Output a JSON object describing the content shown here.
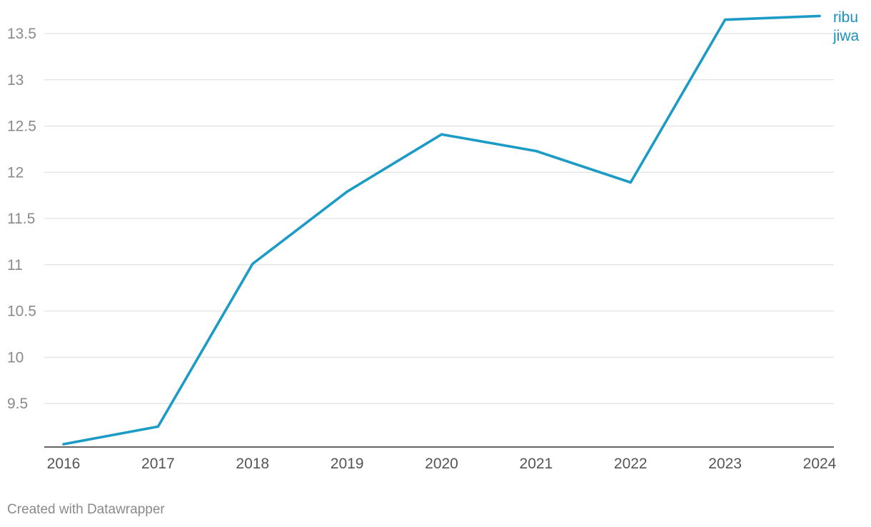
{
  "chart_data": {
    "type": "line",
    "x": [
      "2016",
      "2017",
      "2018",
      "2019",
      "2020",
      "2021",
      "2022",
      "2023",
      "2024"
    ],
    "series": [
      {
        "name": "ribu jiwa",
        "values": [
          9.06,
          9.25,
          11.01,
          11.79,
          12.41,
          12.23,
          11.89,
          13.65,
          13.69
        ],
        "color": "#1d9bc7"
      }
    ],
    "series_label_lines": [
      "ribu",
      "jiwa"
    ],
    "y_ticks": [
      "9.5",
      "10",
      "10.5",
      "11",
      "11.5",
      "12",
      "12.5",
      "13",
      "13.5"
    ],
    "ylim": [
      9.05,
      13.73
    ],
    "grid": true,
    "colors": {
      "line": "#1d9bc7",
      "label": "#1a91bd",
      "grid": "#e1e1e1",
      "axis": "#333333",
      "tick_text": "#8a8a8a",
      "x_tick_text": "#555555"
    }
  },
  "footer": {
    "credit": "Created with Datawrapper"
  }
}
